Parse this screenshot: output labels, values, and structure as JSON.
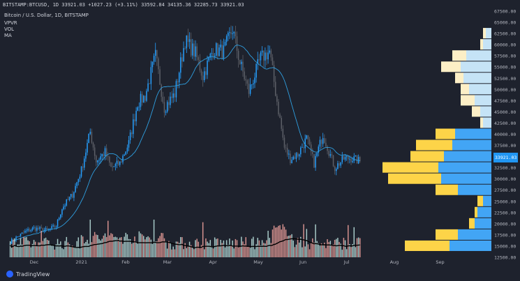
{
  "header": {
    "ticker_line": "BITSTAMP:BTCUSD, 1D 33921.03 +1027.23 (+3.11%) 33592.84 34135.36 32285.73 33921.03",
    "title": "Bitcoin / U.S. Dollar, 1D, BITSTAMP",
    "indicators": [
      "VPVR",
      "VOL",
      "MA"
    ]
  },
  "last_price_label": "33921.03",
  "branding": "TradingView",
  "colors": {
    "background": "#1e222d",
    "up": "#26a0ff",
    "down": "#5d6068",
    "ma": "#2f9fe0",
    "vol_up": "#bfe7e4",
    "vol_down": "#f6a5a0",
    "vol_ma": "#000000",
    "vp_blue": "#42a5f5",
    "vp_gold": "#fdd448",
    "vp_blue_light": "#c5e3f6",
    "vp_gold_light": "#fdefc6"
  },
  "chart_data": {
    "type": "candlestick",
    "title": "Bitcoin / U.S. Dollar, 1D, BITSTAMP",
    "x_ticks": [
      "Dec",
      "2021",
      "Feb",
      "Mar",
      "Apr",
      "May",
      "Jun",
      "Jul",
      "Aug",
      "Sep"
    ],
    "y_ticks": [
      12500,
      15000,
      17500,
      20000,
      22500,
      25000,
      27500,
      30000,
      32500,
      35000,
      37500,
      40000,
      42500,
      45000,
      47500,
      50000,
      52500,
      55000,
      57500,
      60000,
      62500,
      65000,
      67500
    ],
    "ylim": [
      12500,
      67500
    ],
    "close_series": [
      {
        "date": "2020-11-15",
        "close": 16000
      },
      {
        "date": "2020-11-25",
        "close": 18200
      },
      {
        "date": "2020-12-01",
        "close": 19000
      },
      {
        "date": "2020-12-10",
        "close": 18500
      },
      {
        "date": "2020-12-16",
        "close": 19500
      },
      {
        "date": "2020-12-20",
        "close": 23500
      },
      {
        "date": "2020-12-27",
        "close": 26500
      },
      {
        "date": "2021-01-02",
        "close": 32000
      },
      {
        "date": "2021-01-08",
        "close": 40500
      },
      {
        "date": "2021-01-12",
        "close": 34000
      },
      {
        "date": "2021-01-18",
        "close": 36000
      },
      {
        "date": "2021-01-22",
        "close": 32500
      },
      {
        "date": "2021-01-28",
        "close": 33500
      },
      {
        "date": "2021-02-03",
        "close": 38000
      },
      {
        "date": "2021-02-09",
        "close": 47000
      },
      {
        "date": "2021-02-14",
        "close": 48500
      },
      {
        "date": "2021-02-21",
        "close": 57500
      },
      {
        "date": "2021-02-27",
        "close": 46000
      },
      {
        "date": "2021-03-06",
        "close": 49000
      },
      {
        "date": "2021-03-13",
        "close": 61000
      },
      {
        "date": "2021-03-20",
        "close": 58000
      },
      {
        "date": "2021-03-25",
        "close": 53000
      },
      {
        "date": "2021-04-01",
        "close": 59000
      },
      {
        "date": "2021-04-08",
        "close": 58500
      },
      {
        "date": "2021-04-14",
        "close": 63500
      },
      {
        "date": "2021-04-19",
        "close": 56000
      },
      {
        "date": "2021-04-25",
        "close": 49500
      },
      {
        "date": "2021-05-03",
        "close": 57000
      },
      {
        "date": "2021-05-09",
        "close": 58500
      },
      {
        "date": "2021-05-13",
        "close": 49500
      },
      {
        "date": "2021-05-19",
        "close": 37000
      },
      {
        "date": "2021-05-23",
        "close": 34500
      },
      {
        "date": "2021-05-28",
        "close": 35500
      },
      {
        "date": "2021-06-03",
        "close": 39000
      },
      {
        "date": "2021-06-08",
        "close": 33500
      },
      {
        "date": "2021-06-14",
        "close": 40000
      },
      {
        "date": "2021-06-22",
        "close": 32500
      },
      {
        "date": "2021-06-28",
        "close": 34500
      },
      {
        "date": "2021-07-03",
        "close": 34700
      },
      {
        "date": "2021-07-09",
        "close": 33921
      }
    ],
    "volume_profile": [
      {
        "price": 62500,
        "up": 2,
        "down": 1
      },
      {
        "price": 60000,
        "up": 3,
        "down": 1
      },
      {
        "price": 57500,
        "up": 9,
        "down": 5
      },
      {
        "price": 55000,
        "up": 11,
        "down": 7
      },
      {
        "price": 52500,
        "up": 10,
        "down": 3
      },
      {
        "price": 50000,
        "up": 8,
        "down": 3
      },
      {
        "price": 47500,
        "up": 6,
        "down": 5
      },
      {
        "price": 45000,
        "up": 4,
        "down": 3
      },
      {
        "price": 42500,
        "up": 3,
        "down": 1
      },
      {
        "price": 40000,
        "up": 13,
        "down": 7
      },
      {
        "price": 37500,
        "up": 14,
        "down": 13
      },
      {
        "price": 35000,
        "up": 17,
        "down": 12
      },
      {
        "price": 32500,
        "up": 19,
        "down": 20
      },
      {
        "price": 30000,
        "up": 18,
        "down": 19
      },
      {
        "price": 27500,
        "up": 12,
        "down": 8
      },
      {
        "price": 25000,
        "up": 3,
        "down": 2
      },
      {
        "price": 22500,
        "up": 5,
        "down": 1
      },
      {
        "price": 20000,
        "up": 6,
        "down": 2
      },
      {
        "price": 17500,
        "up": 12,
        "down": 8
      },
      {
        "price": 15000,
        "up": 15,
        "down": 16
      }
    ]
  }
}
